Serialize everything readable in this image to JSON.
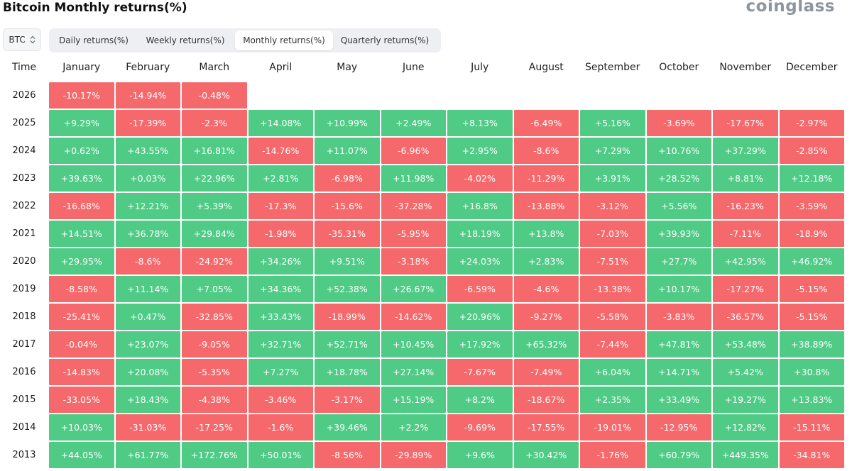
{
  "header": {
    "title": "Bitcoin Monthly returns(%)",
    "logo_text": "coinglass"
  },
  "selector": {
    "value": "BTC"
  },
  "tabs": [
    {
      "label": "Daily returns(%)",
      "active": false
    },
    {
      "label": "Weekly returns(%)",
      "active": false
    },
    {
      "label": "Monthly returns(%)",
      "active": true
    },
    {
      "label": "Quarterly returns(%)",
      "active": false
    }
  ],
  "colors": {
    "positive": "#4fcb85",
    "negative": "#f5696c"
  },
  "chart_data": {
    "type": "heatmap",
    "row_header": "Time",
    "columns": [
      "January",
      "February",
      "March",
      "April",
      "May",
      "June",
      "July",
      "August",
      "September",
      "October",
      "November",
      "December"
    ],
    "rows": [
      {
        "year": "2026",
        "values": [
          "-10.17%",
          "-14.94%",
          "-0.48%",
          null,
          null,
          null,
          null,
          null,
          null,
          null,
          null,
          null
        ]
      },
      {
        "year": "2025",
        "values": [
          "+9.29%",
          "-17.39%",
          "-2.3%",
          "+14.08%",
          "+10.99%",
          "+2.49%",
          "+8.13%",
          "-6.49%",
          "+5.16%",
          "-3.69%",
          "-17.67%",
          "-2.97%"
        ]
      },
      {
        "year": "2024",
        "values": [
          "+0.62%",
          "+43.55%",
          "+16.81%",
          "-14.76%",
          "+11.07%",
          "-6.96%",
          "+2.95%",
          "-8.6%",
          "+7.29%",
          "+10.76%",
          "+37.29%",
          "-2.85%"
        ]
      },
      {
        "year": "2023",
        "values": [
          "+39.63%",
          "+0.03%",
          "+22.96%",
          "+2.81%",
          "-6.98%",
          "+11.98%",
          "-4.02%",
          "-11.29%",
          "+3.91%",
          "+28.52%",
          "+8.81%",
          "+12.18%"
        ]
      },
      {
        "year": "2022",
        "values": [
          "-16.68%",
          "+12.21%",
          "+5.39%",
          "-17.3%",
          "-15.6%",
          "-37.28%",
          "+16.8%",
          "-13.88%",
          "-3.12%",
          "+5.56%",
          "-16.23%",
          "-3.59%"
        ]
      },
      {
        "year": "2021",
        "values": [
          "+14.51%",
          "+36.78%",
          "+29.84%",
          "-1.98%",
          "-35.31%",
          "-5.95%",
          "+18.19%",
          "+13.8%",
          "-7.03%",
          "+39.93%",
          "-7.11%",
          "-18.9%"
        ]
      },
      {
        "year": "2020",
        "values": [
          "+29.95%",
          "-8.6%",
          "-24.92%",
          "+34.26%",
          "+9.51%",
          "-3.18%",
          "+24.03%",
          "+2.83%",
          "-7.51%",
          "+27.7%",
          "+42.95%",
          "+46.92%"
        ]
      },
      {
        "year": "2019",
        "values": [
          "-8.58%",
          "+11.14%",
          "+7.05%",
          "+34.36%",
          "+52.38%",
          "+26.67%",
          "-6.59%",
          "-4.6%",
          "-13.38%",
          "+10.17%",
          "-17.27%",
          "-5.15%"
        ]
      },
      {
        "year": "2018",
        "values": [
          "-25.41%",
          "+0.47%",
          "-32.85%",
          "+33.43%",
          "-18.99%",
          "-14.62%",
          "+20.96%",
          "-9.27%",
          "-5.58%",
          "-3.83%",
          "-36.57%",
          "-5.15%"
        ]
      },
      {
        "year": "2017",
        "values": [
          "-0.04%",
          "+23.07%",
          "-9.05%",
          "+32.71%",
          "+52.71%",
          "+10.45%",
          "+17.92%",
          "+65.32%",
          "-7.44%",
          "+47.81%",
          "+53.48%",
          "+38.89%"
        ]
      },
      {
        "year": "2016",
        "values": [
          "-14.83%",
          "+20.08%",
          "-5.35%",
          "+7.27%",
          "+18.78%",
          "+27.14%",
          "-7.67%",
          "-7.49%",
          "+6.04%",
          "+14.71%",
          "+5.42%",
          "+30.8%"
        ]
      },
      {
        "year": "2015",
        "values": [
          "-33.05%",
          "+18.43%",
          "-4.38%",
          "-3.46%",
          "-3.17%",
          "+15.19%",
          "+8.2%",
          "-18.67%",
          "+2.35%",
          "+33.49%",
          "+19.27%",
          "+13.83%"
        ]
      },
      {
        "year": "2014",
        "values": [
          "+10.03%",
          "-31.03%",
          "-17.25%",
          "-1.6%",
          "+39.46%",
          "+2.2%",
          "-9.69%",
          "-17.55%",
          "-19.01%",
          "-12.95%",
          "+12.82%",
          "-15.11%"
        ]
      },
      {
        "year": "2013",
        "values": [
          "+44.05%",
          "+61.77%",
          "+172.76%",
          "+50.01%",
          "-8.56%",
          "-29.89%",
          "+9.6%",
          "+30.42%",
          "-1.76%",
          "+60.79%",
          "+449.35%",
          "-34.81%"
        ]
      }
    ]
  }
}
